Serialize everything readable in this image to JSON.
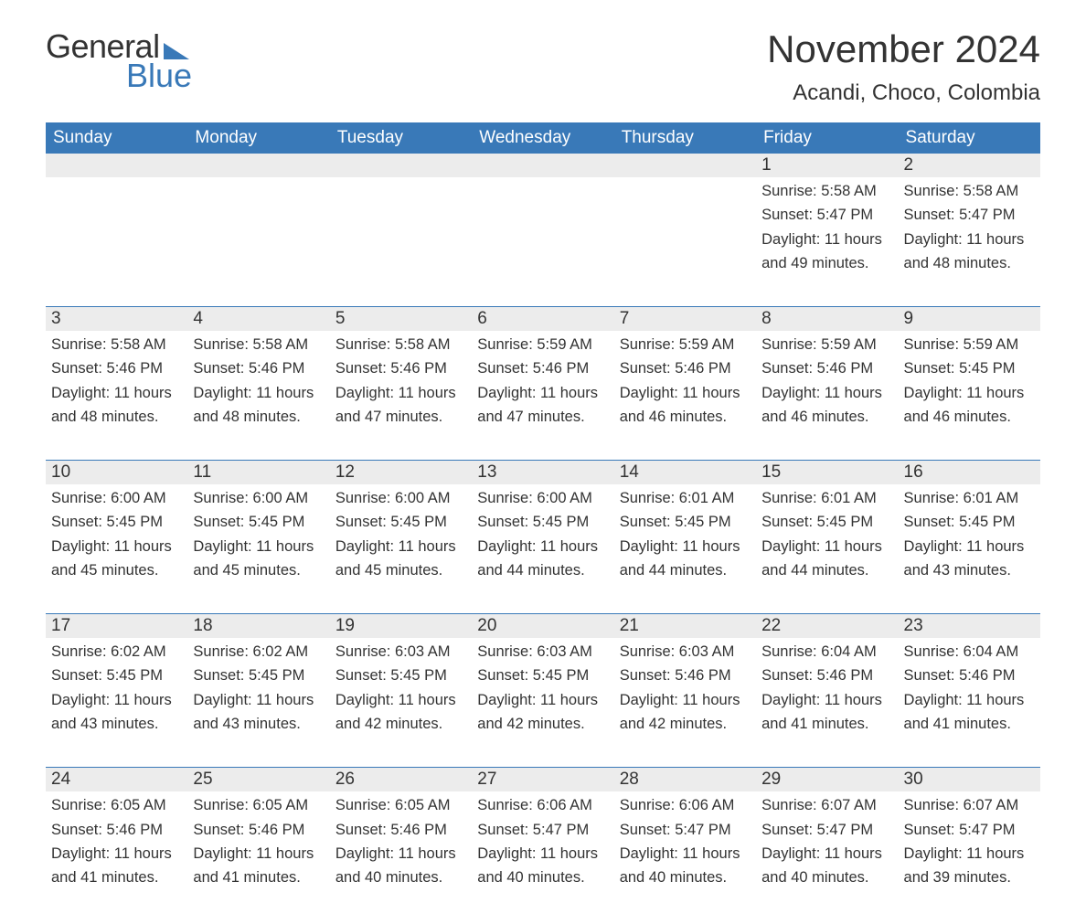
{
  "brand": {
    "word1": "General",
    "word2": "Blue",
    "brand_color": "#3979b8"
  },
  "title": {
    "month": "November 2024",
    "location": "Acandi, Choco, Colombia"
  },
  "colors": {
    "header_bg": "#3979b8",
    "header_text": "#ffffff",
    "daynum_bg": "#ececec",
    "text": "#333333",
    "rule": "#3979b8",
    "page_bg": "#ffffff"
  },
  "typography": {
    "month_title_pt": 42,
    "location_pt": 24,
    "dow_pt": 19,
    "daynum_pt": 19,
    "body_pt": 16.5
  },
  "dow": [
    "Sunday",
    "Monday",
    "Tuesday",
    "Wednesday",
    "Thursday",
    "Friday",
    "Saturday"
  ],
  "weeks": [
    [
      {
        "num": "",
        "lines": [
          "",
          "",
          "",
          ""
        ]
      },
      {
        "num": "",
        "lines": [
          "",
          "",
          "",
          ""
        ]
      },
      {
        "num": "",
        "lines": [
          "",
          "",
          "",
          ""
        ]
      },
      {
        "num": "",
        "lines": [
          "",
          "",
          "",
          ""
        ]
      },
      {
        "num": "",
        "lines": [
          "",
          "",
          "",
          ""
        ]
      },
      {
        "num": "1",
        "lines": [
          "Sunrise: 5:58 AM",
          "Sunset: 5:47 PM",
          "Daylight: 11 hours",
          "and 49 minutes."
        ]
      },
      {
        "num": "2",
        "lines": [
          "Sunrise: 5:58 AM",
          "Sunset: 5:47 PM",
          "Daylight: 11 hours",
          "and 48 minutes."
        ]
      }
    ],
    [
      {
        "num": "3",
        "lines": [
          "Sunrise: 5:58 AM",
          "Sunset: 5:46 PM",
          "Daylight: 11 hours",
          "and 48 minutes."
        ]
      },
      {
        "num": "4",
        "lines": [
          "Sunrise: 5:58 AM",
          "Sunset: 5:46 PM",
          "Daylight: 11 hours",
          "and 48 minutes."
        ]
      },
      {
        "num": "5",
        "lines": [
          "Sunrise: 5:58 AM",
          "Sunset: 5:46 PM",
          "Daylight: 11 hours",
          "and 47 minutes."
        ]
      },
      {
        "num": "6",
        "lines": [
          "Sunrise: 5:59 AM",
          "Sunset: 5:46 PM",
          "Daylight: 11 hours",
          "and 47 minutes."
        ]
      },
      {
        "num": "7",
        "lines": [
          "Sunrise: 5:59 AM",
          "Sunset: 5:46 PM",
          "Daylight: 11 hours",
          "and 46 minutes."
        ]
      },
      {
        "num": "8",
        "lines": [
          "Sunrise: 5:59 AM",
          "Sunset: 5:46 PM",
          "Daylight: 11 hours",
          "and 46 minutes."
        ]
      },
      {
        "num": "9",
        "lines": [
          "Sunrise: 5:59 AM",
          "Sunset: 5:45 PM",
          "Daylight: 11 hours",
          "and 46 minutes."
        ]
      }
    ],
    [
      {
        "num": "10",
        "lines": [
          "Sunrise: 6:00 AM",
          "Sunset: 5:45 PM",
          "Daylight: 11 hours",
          "and 45 minutes."
        ]
      },
      {
        "num": "11",
        "lines": [
          "Sunrise: 6:00 AM",
          "Sunset: 5:45 PM",
          "Daylight: 11 hours",
          "and 45 minutes."
        ]
      },
      {
        "num": "12",
        "lines": [
          "Sunrise: 6:00 AM",
          "Sunset: 5:45 PM",
          "Daylight: 11 hours",
          "and 45 minutes."
        ]
      },
      {
        "num": "13",
        "lines": [
          "Sunrise: 6:00 AM",
          "Sunset: 5:45 PM",
          "Daylight: 11 hours",
          "and 44 minutes."
        ]
      },
      {
        "num": "14",
        "lines": [
          "Sunrise: 6:01 AM",
          "Sunset: 5:45 PM",
          "Daylight: 11 hours",
          "and 44 minutes."
        ]
      },
      {
        "num": "15",
        "lines": [
          "Sunrise: 6:01 AM",
          "Sunset: 5:45 PM",
          "Daylight: 11 hours",
          "and 44 minutes."
        ]
      },
      {
        "num": "16",
        "lines": [
          "Sunrise: 6:01 AM",
          "Sunset: 5:45 PM",
          "Daylight: 11 hours",
          "and 43 minutes."
        ]
      }
    ],
    [
      {
        "num": "17",
        "lines": [
          "Sunrise: 6:02 AM",
          "Sunset: 5:45 PM",
          "Daylight: 11 hours",
          "and 43 minutes."
        ]
      },
      {
        "num": "18",
        "lines": [
          "Sunrise: 6:02 AM",
          "Sunset: 5:45 PM",
          "Daylight: 11 hours",
          "and 43 minutes."
        ]
      },
      {
        "num": "19",
        "lines": [
          "Sunrise: 6:03 AM",
          "Sunset: 5:45 PM",
          "Daylight: 11 hours",
          "and 42 minutes."
        ]
      },
      {
        "num": "20",
        "lines": [
          "Sunrise: 6:03 AM",
          "Sunset: 5:45 PM",
          "Daylight: 11 hours",
          "and 42 minutes."
        ]
      },
      {
        "num": "21",
        "lines": [
          "Sunrise: 6:03 AM",
          "Sunset: 5:46 PM",
          "Daylight: 11 hours",
          "and 42 minutes."
        ]
      },
      {
        "num": "22",
        "lines": [
          "Sunrise: 6:04 AM",
          "Sunset: 5:46 PM",
          "Daylight: 11 hours",
          "and 41 minutes."
        ]
      },
      {
        "num": "23",
        "lines": [
          "Sunrise: 6:04 AM",
          "Sunset: 5:46 PM",
          "Daylight: 11 hours",
          "and 41 minutes."
        ]
      }
    ],
    [
      {
        "num": "24",
        "lines": [
          "Sunrise: 6:05 AM",
          "Sunset: 5:46 PM",
          "Daylight: 11 hours",
          "and 41 minutes."
        ]
      },
      {
        "num": "25",
        "lines": [
          "Sunrise: 6:05 AM",
          "Sunset: 5:46 PM",
          "Daylight: 11 hours",
          "and 41 minutes."
        ]
      },
      {
        "num": "26",
        "lines": [
          "Sunrise: 6:05 AM",
          "Sunset: 5:46 PM",
          "Daylight: 11 hours",
          "and 40 minutes."
        ]
      },
      {
        "num": "27",
        "lines": [
          "Sunrise: 6:06 AM",
          "Sunset: 5:47 PM",
          "Daylight: 11 hours",
          "and 40 minutes."
        ]
      },
      {
        "num": "28",
        "lines": [
          "Sunrise: 6:06 AM",
          "Sunset: 5:47 PM",
          "Daylight: 11 hours",
          "and 40 minutes."
        ]
      },
      {
        "num": "29",
        "lines": [
          "Sunrise: 6:07 AM",
          "Sunset: 5:47 PM",
          "Daylight: 11 hours",
          "and 40 minutes."
        ]
      },
      {
        "num": "30",
        "lines": [
          "Sunrise: 6:07 AM",
          "Sunset: 5:47 PM",
          "Daylight: 11 hours",
          "and 39 minutes."
        ]
      }
    ]
  ]
}
